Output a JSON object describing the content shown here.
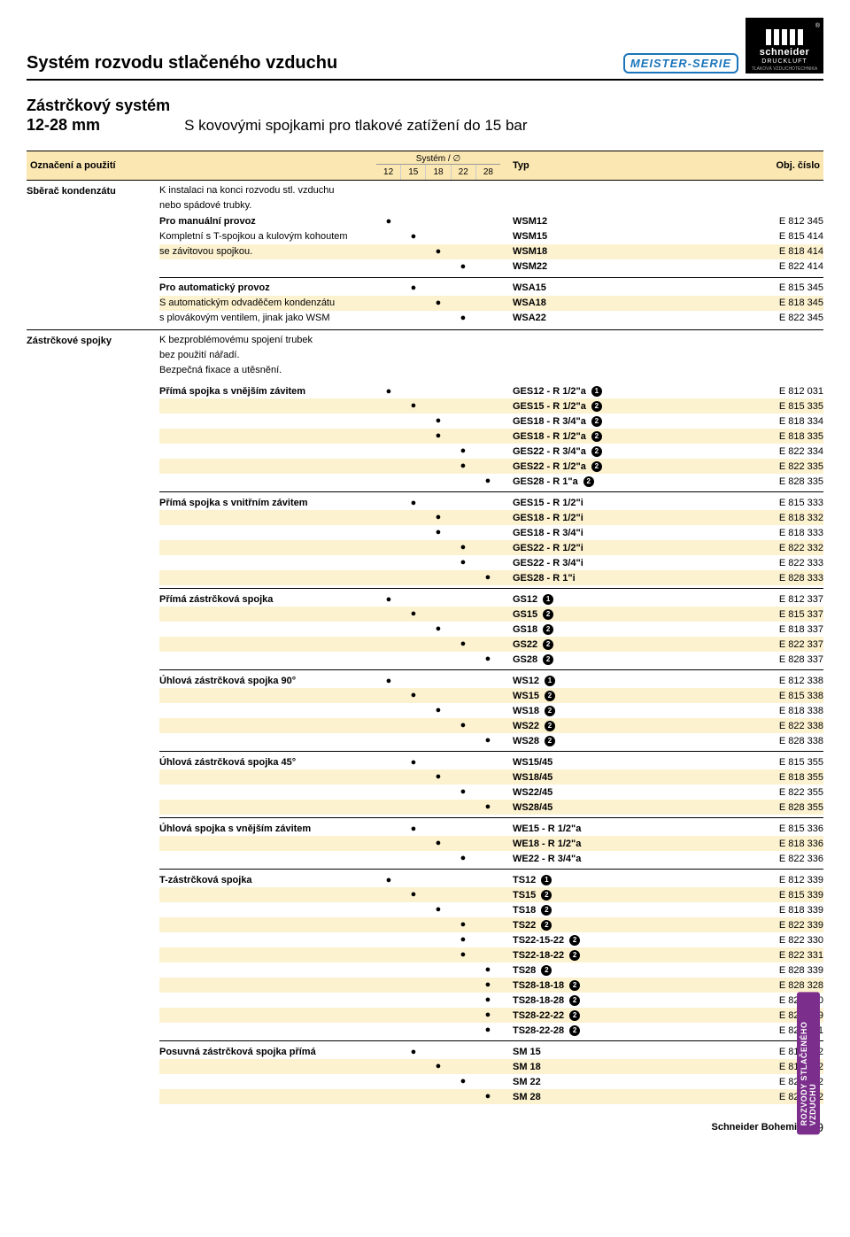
{
  "header": {
    "title": "Systém rozvodu stlačeného vzduchu",
    "meister": "MEISTER-SERIE",
    "brand": "schneider",
    "brand2": "DRUCKLUFT",
    "brand3": "TLAKOVÁ VZDUCHOTECHNIKA"
  },
  "subhead": {
    "left1": "Zástrčkový systém",
    "left2": "12-28 mm",
    "right": "S kovovými spojkami pro tlakové zatížení do 15 bar"
  },
  "colhead": {
    "c1": "Označení a použití",
    "c3top": "Systém / ∅",
    "c3cols": [
      "12",
      "15",
      "18",
      "22",
      "28"
    ],
    "c4": "Typ",
    "c5": "Obj. číslo"
  },
  "sidebar": "ROZVODY STLAČENÉHO VZDUCHU",
  "footer": {
    "brand": "Schneider Bohemia",
    "page": "9"
  },
  "sections": [
    {
      "name": "Sběrač kondenzátu",
      "groups": [
        {
          "desc": [
            "K instalaci na konci rozvodu stl. vzduchu",
            "nebo spádové trubky."
          ],
          "headrow": {
            "label": "Pro manuální provoz",
            "dotcol": 0,
            "typ": "WSM12",
            "obj": "E 812 345"
          },
          "rows": [
            {
              "label": "Kompletní s T-spojkou a kulovým kohoutem",
              "dotcol": 1,
              "typ": "WSM15",
              "obj": "E 815 414",
              "alt": false
            },
            {
              "label": "se závitovou spojkou.",
              "dotcol": 2,
              "typ": "WSM18",
              "obj": "E 818 414",
              "alt": true
            },
            {
              "label": "",
              "dotcol": 3,
              "typ": "WSM22",
              "obj": "E 822 414",
              "alt": false
            }
          ]
        },
        {
          "headrow": {
            "label": "Pro automatický provoz",
            "dotcol": 1,
            "typ": "WSA15",
            "obj": "E 815 345"
          },
          "rows": [
            {
              "label": "S automatickým odvaděčem kondenzátu",
              "dotcol": 2,
              "typ": "WSA18",
              "obj": "E 818 345",
              "alt": true
            },
            {
              "label": "s plovákovým ventilem, jinak jako WSM",
              "dotcol": 3,
              "typ": "WSA22",
              "obj": "E 822 345",
              "alt": false
            }
          ]
        }
      ]
    },
    {
      "name": "Zástrčkové spojky",
      "intro": [
        "K bezproblémovému spojení trubek",
        "bez použití nářadí.",
        "Bezpečná fixace a utěsnění."
      ],
      "groups": [
        {
          "headrow": {
            "label": "Přímá spojka s vnějším závitem",
            "dotcol": 0,
            "typ": "GES12 - R 1/2\"a",
            "badge": "1",
            "obj": "E 812 031"
          },
          "rows": [
            {
              "dotcol": 1,
              "typ": "GES15 - R 1/2\"a",
              "badge": "2",
              "obj": "E 815 335",
              "alt": true
            },
            {
              "dotcol": 2,
              "typ": "GES18 - R 3/4\"a",
              "badge": "2",
              "obj": "E 818 334",
              "alt": false
            },
            {
              "dotcol": 2,
              "typ": "GES18 - R 1/2\"a",
              "badge": "2",
              "obj": "E 818 335",
              "alt": true
            },
            {
              "dotcol": 3,
              "typ": "GES22 - R 3/4\"a",
              "badge": "2",
              "obj": "E 822 334",
              "alt": false
            },
            {
              "dotcol": 3,
              "typ": "GES22 - R 1/2\"a",
              "badge": "2",
              "obj": "E 822 335",
              "alt": true
            },
            {
              "dotcol": 4,
              "typ": "GES28 - R 1\"a",
              "badge": "2",
              "obj": "E 828 335",
              "alt": false
            }
          ]
        },
        {
          "headrow": {
            "label": "Přímá spojka s vnitřním závitem",
            "dotcol": 1,
            "typ": "GES15 - R 1/2\"i",
            "obj": "E 815 333"
          },
          "rows": [
            {
              "dotcol": 2,
              "typ": "GES18 - R 1/2\"i",
              "obj": "E 818 332",
              "alt": true
            },
            {
              "dotcol": 2,
              "typ": "GES18 - R 3/4\"i",
              "obj": "E 818 333",
              "alt": false
            },
            {
              "dotcol": 3,
              "typ": "GES22 - R 1/2\"i",
              "obj": "E 822 332",
              "alt": true
            },
            {
              "dotcol": 3,
              "typ": "GES22 - R 3/4\"i",
              "obj": "E 822 333",
              "alt": false
            },
            {
              "dotcol": 4,
              "typ": "GES28 - R 1\"i",
              "obj": "E 828 333",
              "alt": true
            }
          ]
        },
        {
          "headrow": {
            "label": "Přímá zástrčková spojka",
            "dotcol": 0,
            "typ": "GS12",
            "badge": "1",
            "obj": "E 812 337"
          },
          "rows": [
            {
              "dotcol": 1,
              "typ": "GS15",
              "badge": "2",
              "obj": "E 815 337",
              "alt": true
            },
            {
              "dotcol": 2,
              "typ": "GS18",
              "badge": "2",
              "obj": "E 818 337",
              "alt": false
            },
            {
              "dotcol": 3,
              "typ": "GS22",
              "badge": "2",
              "obj": "E 822 337",
              "alt": true
            },
            {
              "dotcol": 4,
              "typ": "GS28",
              "badge": "2",
              "obj": "E 828 337",
              "alt": false
            }
          ]
        },
        {
          "headrow": {
            "label": "Úhlová zástrčková spojka 90°",
            "dotcol": 0,
            "typ": "WS12",
            "badge": "1",
            "obj": "E 812 338"
          },
          "rows": [
            {
              "dotcol": 1,
              "typ": "WS15",
              "badge": "2",
              "obj": "E 815 338",
              "alt": true
            },
            {
              "dotcol": 2,
              "typ": "WS18",
              "badge": "2",
              "obj": "E 818 338",
              "alt": false
            },
            {
              "dotcol": 3,
              "typ": "WS22",
              "badge": "2",
              "obj": "E 822 338",
              "alt": true
            },
            {
              "dotcol": 4,
              "typ": "WS28",
              "badge": "2",
              "obj": "E 828 338",
              "alt": false
            }
          ]
        },
        {
          "headrow": {
            "label": "Úhlová zástrčková spojka 45°",
            "dotcol": 1,
            "typ": "WS15/45",
            "obj": "E 815 355"
          },
          "rows": [
            {
              "dotcol": 2,
              "typ": "WS18/45",
              "obj": "E 818 355",
              "alt": true
            },
            {
              "dotcol": 3,
              "typ": "WS22/45",
              "obj": "E 822 355",
              "alt": false
            },
            {
              "dotcol": 4,
              "typ": "WS28/45",
              "obj": "E 828 355",
              "alt": true
            }
          ]
        },
        {
          "headrow": {
            "label": "Úhlová spojka s vnějším závitem",
            "dotcol": 1,
            "typ": "WE15 - R 1/2\"a",
            "obj": "E 815 336"
          },
          "rows": [
            {
              "dotcol": 2,
              "typ": "WE18 - R 1/2\"a",
              "obj": "E 818 336",
              "alt": true
            },
            {
              "dotcol": 3,
              "typ": "WE22 - R 3/4\"a",
              "obj": "E 822 336",
              "alt": false
            }
          ]
        },
        {
          "headrow": {
            "label": "T-zástrčková spojka",
            "dotcol": 0,
            "typ": "TS12",
            "badge": "1",
            "obj": "E 812 339"
          },
          "rows": [
            {
              "dotcol": 1,
              "typ": "TS15",
              "badge": "2",
              "obj": "E 815 339",
              "alt": true
            },
            {
              "dotcol": 2,
              "typ": "TS18",
              "badge": "2",
              "obj": "E 818 339",
              "alt": false
            },
            {
              "dotcol": 3,
              "typ": "TS22",
              "badge": "2",
              "obj": "E 822 339",
              "alt": true
            },
            {
              "dotcol": 3,
              "typ": "TS22-15-22",
              "badge": "2",
              "obj": "E 822 330",
              "alt": false
            },
            {
              "dotcol": 3,
              "typ": "TS22-18-22",
              "badge": "2",
              "obj": "E 822 331",
              "alt": true
            },
            {
              "dotcol": 4,
              "typ": "TS28",
              "badge": "2",
              "obj": "E 828 339",
              "alt": false
            },
            {
              "dotcol": 4,
              "typ": "TS28-18-18",
              "badge": "2",
              "obj": "E 828 328",
              "alt": true
            },
            {
              "dotcol": 4,
              "typ": "TS28-18-28",
              "badge": "2",
              "obj": "E 828 330",
              "alt": false
            },
            {
              "dotcol": 4,
              "typ": "TS28-22-22",
              "badge": "2",
              "obj": "E 828 329",
              "alt": true
            },
            {
              "dotcol": 4,
              "typ": "TS28-22-28",
              "badge": "2",
              "obj": "E 828 331",
              "alt": false
            }
          ]
        },
        {
          "headrow": {
            "label": "Posuvná zástrčková spojka přímá",
            "dotcol": 1,
            "typ": "SM 15",
            "obj": "E 815 352"
          },
          "rows": [
            {
              "dotcol": 2,
              "typ": "SM 18",
              "obj": "E 818 352",
              "alt": true
            },
            {
              "dotcol": 3,
              "typ": "SM 22",
              "obj": "E 822 352",
              "alt": false
            },
            {
              "dotcol": 4,
              "typ": "SM 28",
              "obj": "E 828 352",
              "alt": true
            }
          ]
        }
      ]
    }
  ]
}
